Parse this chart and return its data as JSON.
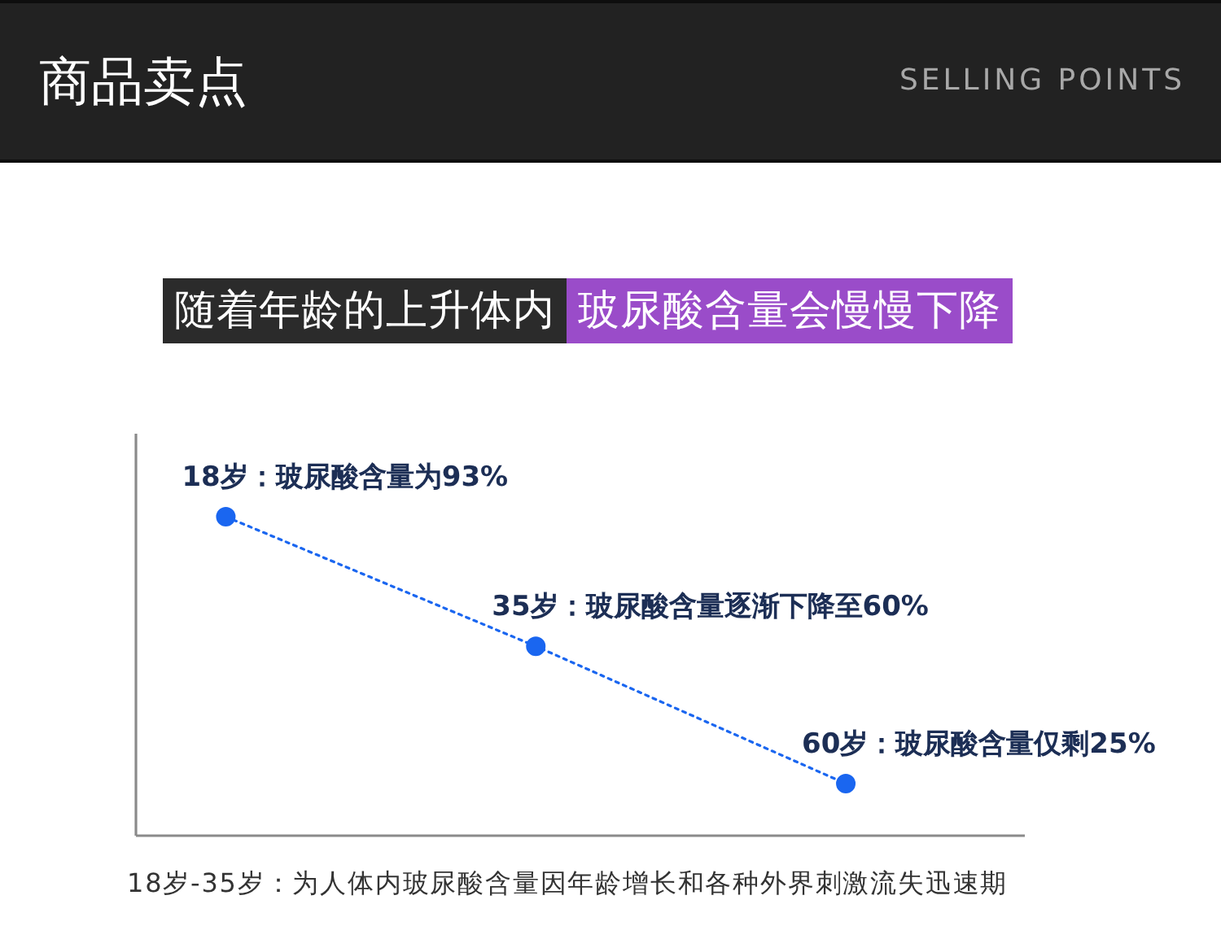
{
  "chart_data": {
    "type": "line",
    "title": "随着年龄的上升体内",
    "subtitle": "玻尿酸含量会慢慢下降",
    "categories": [
      null,
      null,
      null
    ],
    "series": [
      {
        "color": "#1a66f0",
        "values": [
          93,
          60,
          25
        ],
        "value_labels": [
          "18岁：玻尿酸含量为93%",
          "35岁：玻尿酸含量逐渐下降至60%",
          "60岁：玻尿酸含量仅剩25%"
        ]
      }
    ],
    "marker": "circle",
    "line_style": "dotted",
    "annotations": [
      "商品卖点",
      "SELLING POINTS",
      "18岁-35岁：为人体内玻尿酸含量因年龄增长和各种外界刺激流失迅速期"
    ]
  }
}
